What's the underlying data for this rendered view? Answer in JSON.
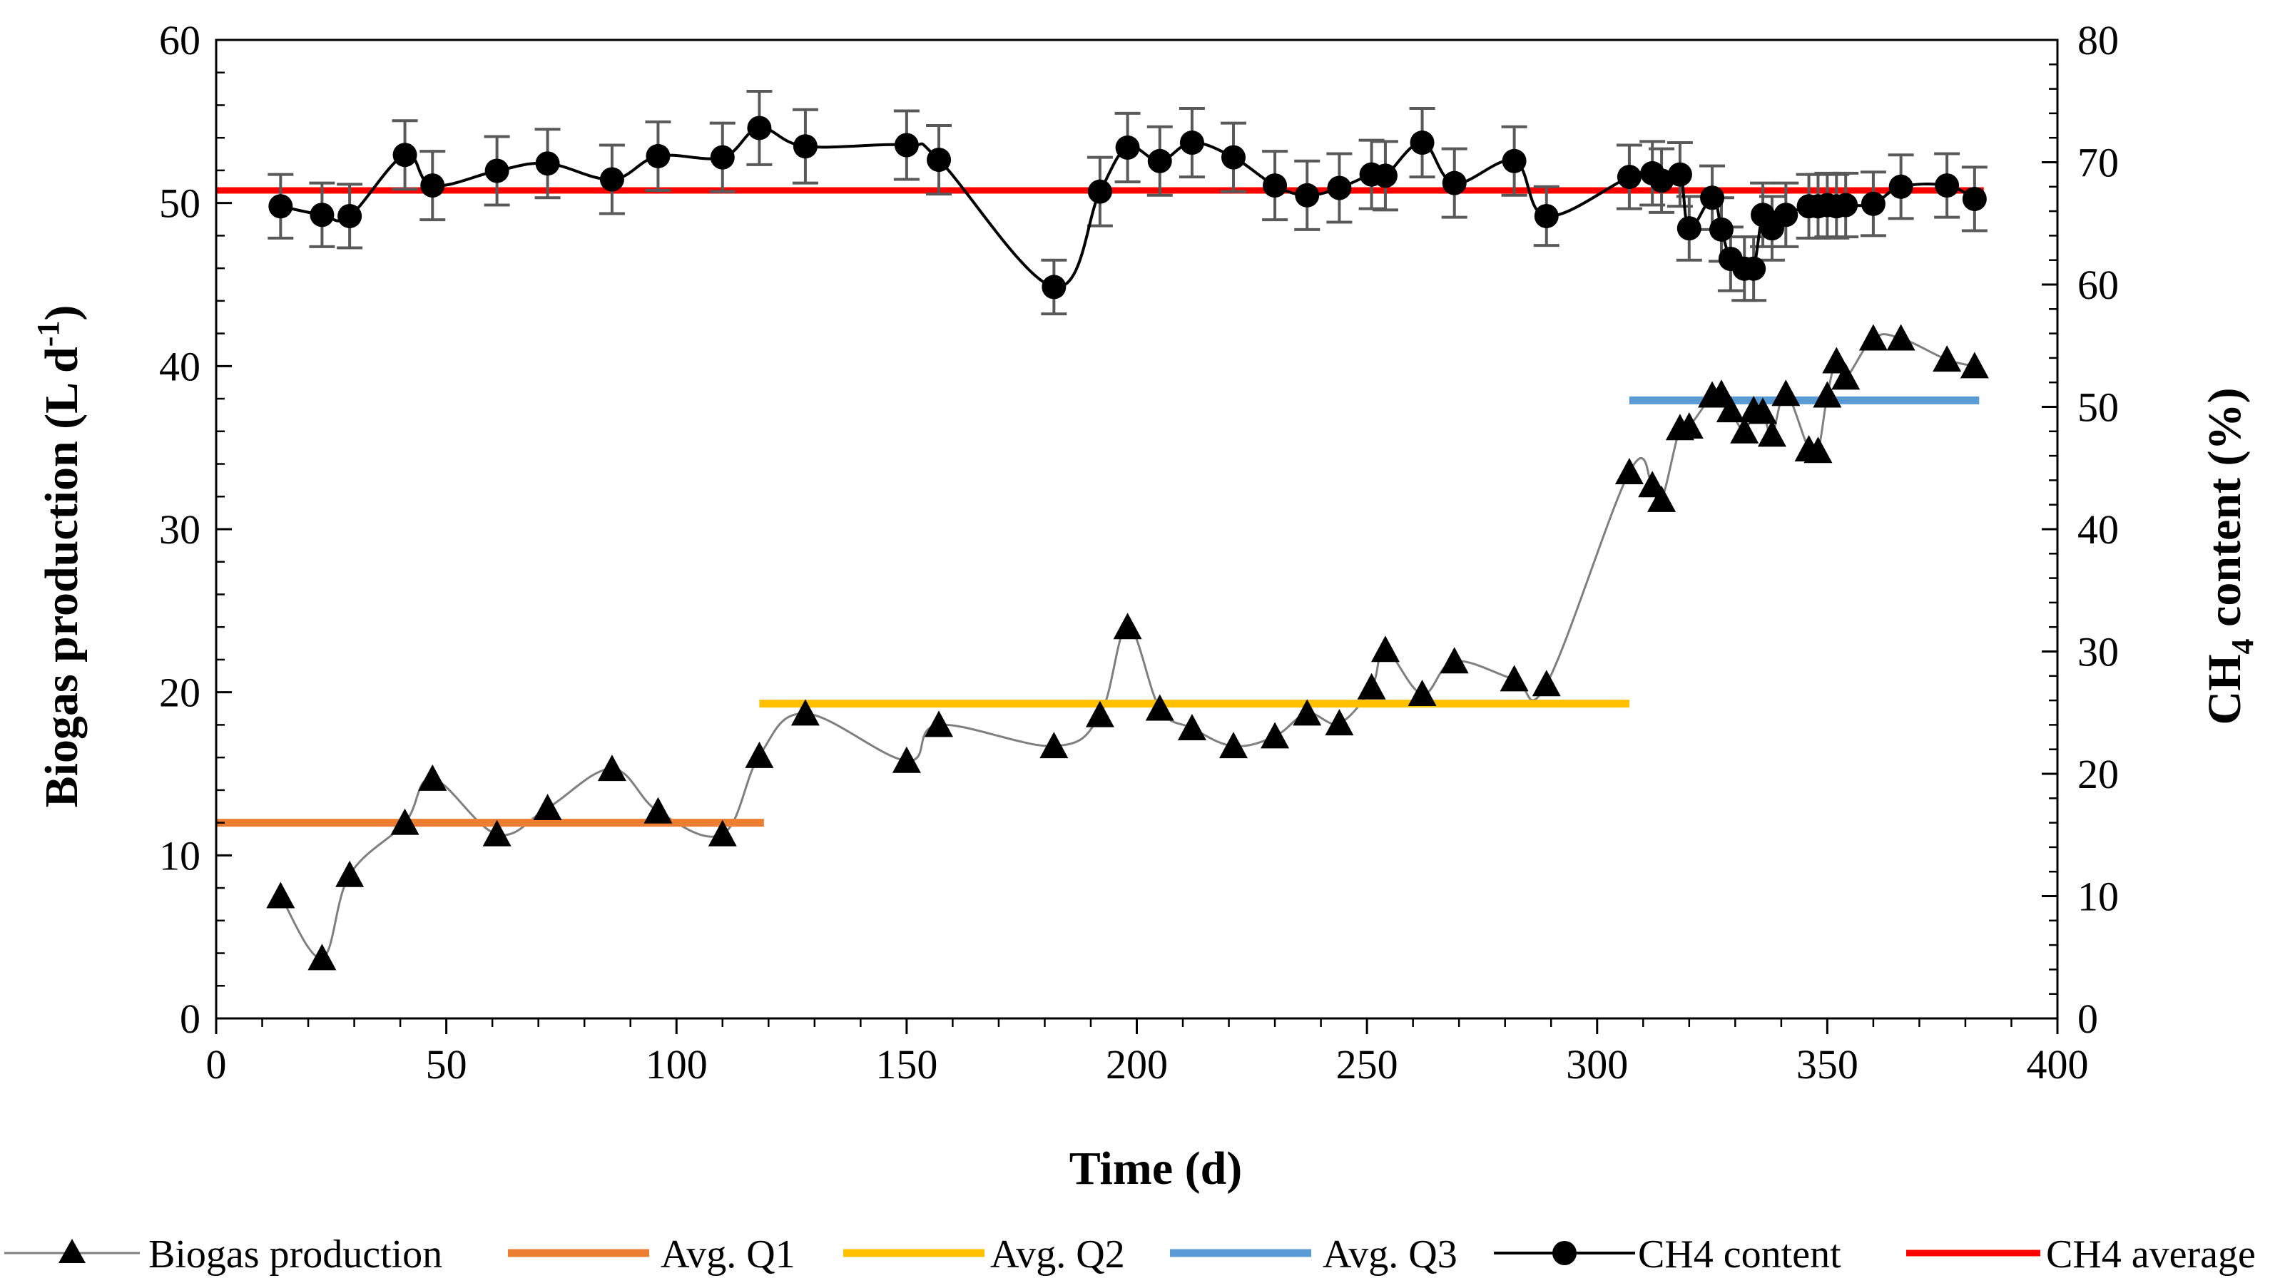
{
  "chart_data": {
    "type": "line",
    "xlabel": "Time (d)",
    "ylabel_left_main": "Biogas production (L d",
    "ylabel_left_sup": "-1",
    "ylabel_left_end": ")",
    "ylabel_right_pre": "CH",
    "ylabel_right_sub": "4",
    "ylabel_right_post": " content (%)",
    "xlim": [
      0,
      400
    ],
    "ylim_left": [
      0,
      60
    ],
    "ylim_right": [
      0,
      80
    ],
    "x_ticks": [
      "0",
      "50",
      "100",
      "150",
      "200",
      "250",
      "300",
      "350",
      "400"
    ],
    "y_left_ticks": [
      "0",
      "10",
      "20",
      "30",
      "40",
      "50",
      "60"
    ],
    "y_right_ticks": [
      "0",
      "10",
      "20",
      "30",
      "40",
      "50",
      "60",
      "70",
      "80"
    ],
    "colors": {
      "biogas": "#000000",
      "biogas_line": "#7f7f7f",
      "avg_q1": "#ed7d31",
      "avg_q2": "#ffc000",
      "avg_q3": "#5b9bd5",
      "ch4": "#000000",
      "ch4_avg": "#ff0000",
      "error_bar": "#595959"
    },
    "series": [
      {
        "name": "Biogas production",
        "axis": "left",
        "x": [
          14,
          23,
          29,
          41,
          47,
          61,
          72,
          86,
          96,
          110,
          118,
          128,
          150,
          157,
          182,
          192,
          198,
          205,
          212,
          221,
          230,
          237,
          244,
          251,
          254,
          262,
          269,
          282,
          289,
          307,
          312,
          314,
          318,
          320,
          325,
          327,
          329,
          332,
          334,
          336,
          338,
          341,
          346,
          348,
          350,
          352,
          354,
          360,
          366,
          376,
          382
        ],
        "y": [
          7.5,
          3.7,
          8.8,
          12.0,
          14.7,
          11.3,
          12.9,
          15.3,
          12.7,
          11.3,
          16.1,
          18.7,
          15.8,
          18.0,
          16.7,
          18.6,
          24.0,
          19.0,
          17.8,
          16.7,
          17.3,
          18.7,
          18.1,
          20.3,
          22.6,
          19.9,
          21.9,
          20.8,
          20.5,
          33.5,
          32.7,
          31.8,
          36.2,
          36.3,
          38.2,
          38.3,
          37.3,
          36.0,
          37.3,
          37.2,
          35.8,
          38.3,
          34.9,
          34.8,
          38.2,
          40.3,
          39.3,
          41.7,
          41.7,
          40.4,
          40.0
        ]
      },
      {
        "name": "CH4 content",
        "axis": "right",
        "x": [
          14,
          23,
          29,
          41,
          47,
          61,
          72,
          86,
          96,
          110,
          118,
          128,
          150,
          157,
          182,
          192,
          198,
          205,
          212,
          221,
          230,
          237,
          244,
          251,
          254,
          262,
          269,
          282,
          289,
          307,
          312,
          314,
          318,
          320,
          325,
          327,
          329,
          332,
          334,
          336,
          338,
          341,
          346,
          348,
          350,
          352,
          354,
          360,
          366,
          376,
          382
        ],
        "y": [
          66.4,
          65.7,
          65.6,
          70.6,
          68.1,
          69.3,
          69.9,
          68.6,
          70.5,
          70.4,
          72.8,
          71.3,
          71.4,
          70.2,
          59.8,
          67.6,
          71.2,
          70.1,
          71.6,
          70.4,
          68.1,
          67.3,
          67.9,
          69.0,
          68.9,
          71.6,
          68.3,
          70.1,
          65.6,
          68.8,
          69.1,
          68.5,
          69.0,
          64.6,
          67.1,
          64.5,
          62.1,
          61.3,
          61.3,
          65.7,
          64.6,
          65.7,
          66.4,
          66.4,
          66.5,
          66.4,
          66.5,
          66.6,
          68.0,
          68.1,
          67.0
        ],
        "error": [
          2.6,
          2.6,
          2.6,
          2.8,
          2.8,
          2.8,
          2.8,
          2.8,
          2.8,
          2.8,
          3.0,
          3.0,
          2.8,
          2.8,
          2.2,
          2.8,
          2.8,
          2.8,
          2.8,
          2.8,
          2.8,
          2.8,
          2.8,
          2.8,
          2.8,
          2.8,
          2.8,
          2.8,
          2.4,
          2.6,
          2.6,
          2.6,
          2.6,
          2.6,
          2.6,
          2.6,
          2.6,
          2.6,
          2.6,
          2.6,
          2.6,
          2.6,
          2.6,
          2.6,
          2.6,
          2.6,
          2.6,
          2.6,
          2.6,
          2.6,
          2.6
        ]
      }
    ],
    "averages": [
      {
        "name": "Avg. Q1",
        "axis": "left",
        "x": [
          0,
          119
        ],
        "y": 12.0
      },
      {
        "name": "Avg. Q2",
        "axis": "left",
        "x": [
          118,
          307
        ],
        "y": 19.3
      },
      {
        "name": "Avg. Q3",
        "axis": "left",
        "x": [
          307,
          383
        ],
        "y": 37.9
      },
      {
        "name": "CH4 average",
        "axis": "right",
        "x": [
          0,
          384
        ],
        "y": 67.7
      }
    ],
    "legend": {
      "position": "bottom",
      "entries": [
        "Biogas production",
        "Avg. Q1",
        "Avg. Q2",
        "Avg. Q3",
        "CH4 content",
        "CH4 average"
      ]
    }
  }
}
